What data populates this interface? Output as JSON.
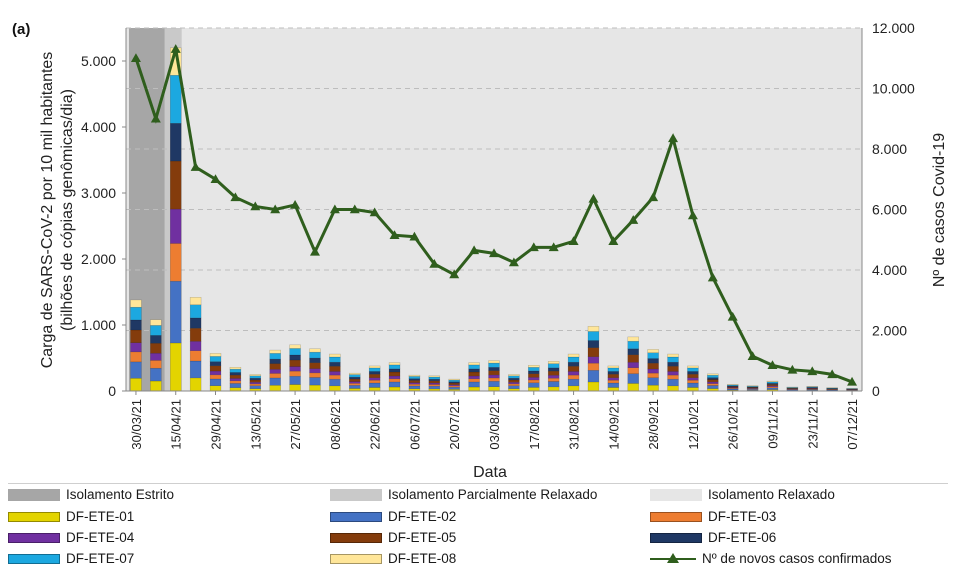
{
  "panel_label": "(a)",
  "chart_data": {
    "type": "bar",
    "subtype": "stacked bar + line (secondary axis)",
    "xlabel": "Data",
    "ylabel_left": "Carga de SARS-CoV-2 por 10 mil habitantes (bilhões de cópias genômicas/dia)",
    "ylabel_right": "Nº de casos Covid-19",
    "ylim_left": [
      0,
      5500
    ],
    "ylim_right": [
      0,
      12000
    ],
    "yticks_left": [
      "0",
      "1.000",
      "2.000",
      "3.000",
      "4.000",
      "5.000"
    ],
    "yticks_right": [
      "0",
      "2.000",
      "4.000",
      "6.000",
      "8.000",
      "10.000",
      "12.000"
    ],
    "grid": "horizontal dashed",
    "legend_position": "bottom",
    "x_tick_labels": [
      "30/03/21",
      "15/04/21",
      "29/04/21",
      "13/05/21",
      "27/05/21",
      "08/06/21",
      "22/06/21",
      "06/07/21",
      "20/07/21",
      "03/08/21",
      "17/08/21",
      "31/08/21",
      "14/09/21",
      "28/09/21",
      "12/10/21",
      "26/10/21",
      "09/11/21",
      "23/11/21",
      "07/12/21"
    ],
    "bar_totals": [
      1380,
      1080,
      5200,
      1420,
      570,
      360,
      250,
      620,
      700,
      640,
      560,
      270,
      380,
      430,
      240,
      230,
      180,
      430,
      460,
      250,
      390,
      450,
      560,
      980,
      380,
      820,
      630,
      560,
      380,
      260,
      100,
      80,
      150,
      60,
      70,
      50,
      40
    ],
    "component_shares": [
      0.14,
      0.18,
      0.11,
      0.1,
      0.14,
      0.11,
      0.14,
      0.08
    ],
    "segment_colors": [
      "#e3d400",
      "#4472c4",
      "#ed7d31",
      "#7030a0",
      "#843c0c",
      "#1f3864",
      "#1ca8e0",
      "#ffe699"
    ],
    "series": [
      {
        "name": "DF-ETE-01",
        "color": "#e3d400"
      },
      {
        "name": "DF-ETE-02",
        "color": "#4472c4"
      },
      {
        "name": "DF-ETE-03",
        "color": "#ed7d31"
      },
      {
        "name": "DF-ETE-04",
        "color": "#7030a0"
      },
      {
        "name": "DF-ETE-05",
        "color": "#843c0c"
      },
      {
        "name": "DF-ETE-06",
        "color": "#1f3864"
      },
      {
        "name": "DF-ETE-07",
        "color": "#1ca8e0"
      },
      {
        "name": "DF-ETE-08",
        "color": "#ffe699"
      }
    ],
    "cases_series": {
      "name": "Nº de novos casos confirmados",
      "color": "#2f5e1d",
      "values": [
        11000,
        9000,
        11300,
        7400,
        7000,
        6400,
        6100,
        6000,
        6150,
        4600,
        6000,
        6000,
        5900,
        5150,
        5100,
        4200,
        3850,
        4650,
        4550,
        4250,
        4750,
        4750,
        4950,
        6350,
        4950,
        5650,
        6400,
        8350,
        5800,
        3750,
        2450,
        1150,
        850,
        700,
        650,
        550,
        300
      ]
    },
    "periods": [
      {
        "name": "Isolamento Estrito",
        "color": "#a6a6a6",
        "start_bar": 0,
        "end_bar": 2
      },
      {
        "name": "Isolamento Parcialmente Relaxado",
        "color": "#c9c9c9"
      },
      {
        "name": "Isolamento Relaxado",
        "color": "#e6e6e6"
      }
    ]
  }
}
